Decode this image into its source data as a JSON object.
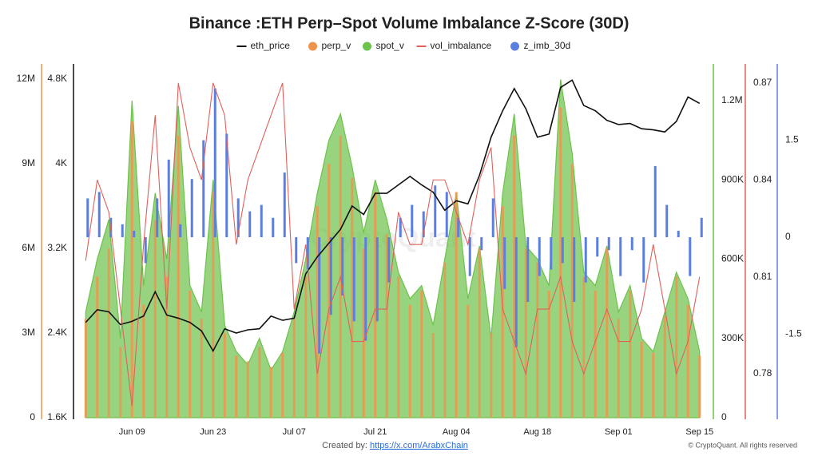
{
  "chart_data": {
    "type": "combo",
    "title": "Binance :ETH Perp–Spot Volume Imbalance Z-Score (30D)",
    "watermark": "CryptoQuant",
    "footer": {
      "created_by": "Created by:",
      "link": "https://x.com/ArabxChain",
      "copyright": "© CryptoQuant. All rights reserved"
    },
    "categories": [
      null,
      null,
      null,
      null,
      "Jun 09",
      null,
      null,
      null,
      null,
      null,
      null,
      "Jun 23",
      null,
      null,
      null,
      null,
      null,
      null,
      "Jul 07",
      null,
      null,
      null,
      null,
      null,
      null,
      "Jul 21",
      null,
      null,
      null,
      null,
      null,
      null,
      "Aug 04",
      null,
      null,
      null,
      null,
      null,
      null,
      "Aug 18",
      null,
      null,
      null,
      null,
      null,
      null,
      "Sep 01",
      null,
      null,
      null,
      null,
      null,
      null,
      "Sep 15"
    ],
    "axes": {
      "perp": {
        "ylim": [
          0,
          12540000
        ],
        "yticks": [
          0,
          {
            "value": 3000000,
            "label": "3M"
          },
          {
            "value": 6000000,
            "label": "6M"
          },
          {
            "value": 9000000,
            "label": "9M"
          },
          {
            "value": 12000000,
            "label": "12M"
          }
        ],
        "color": "#f0944d",
        "side": "left",
        "order": 0
      },
      "eth": {
        "ylim": [
          1600,
          4943
        ],
        "yticks": [
          {
            "value": 1600,
            "label": "1.6K"
          },
          {
            "value": 2400,
            "label": "2.4K"
          },
          {
            "value": 3200,
            "label": "3.2K"
          },
          {
            "value": 4000,
            "label": "4K"
          },
          {
            "value": 4800,
            "label": "4.8K"
          }
        ],
        "color": "#111111",
        "side": "left",
        "order": 1
      },
      "spot": {
        "ylim": [
          0,
          1339000
        ],
        "yticks": [
          0,
          {
            "value": 300000,
            "label": "300K"
          },
          {
            "value": 600000,
            "label": "600K"
          },
          {
            "value": 900000,
            "label": "900K"
          },
          {
            "value": 1200000,
            "label": "1.2M"
          }
        ],
        "color": "#6cc24a",
        "side": "right",
        "order": 0
      },
      "vol": {
        "ylim": [
          0.7664,
          0.8759
        ],
        "yticks": [
          0.78,
          0.81,
          0.84,
          0.87
        ],
        "color": "#e0605a",
        "side": "right",
        "order": 1
      },
      "z": {
        "ylim": [
          -2.79,
          2.68
        ],
        "yticks": [
          -1.5,
          0,
          1.5
        ],
        "color": "#5b7fe0",
        "side": "right",
        "order": 2
      }
    },
    "series": [
      {
        "name": "eth_price",
        "type": "line",
        "axis": "eth",
        "color": "#111111",
        "values": [
          2500,
          2620,
          2600,
          2480,
          2510,
          2560,
          2790,
          2570,
          2540,
          2500,
          2420,
          2230,
          2440,
          2400,
          2430,
          2440,
          2560,
          2520,
          2540,
          2960,
          3120,
          3250,
          3380,
          3600,
          3520,
          3720,
          3720,
          3800,
          3880,
          3800,
          3730,
          3560,
          3650,
          3620,
          3890,
          4250,
          4500,
          4710,
          4520,
          4250,
          4280,
          4720,
          4790,
          4550,
          4500,
          4410,
          4370,
          4380,
          4330,
          4320,
          4300,
          4400,
          4630,
          4570
        ]
      },
      {
        "name": "perp_v",
        "type": "bar",
        "axis": "perp",
        "color": "#f0944d",
        "values": [
          3500000,
          5000000,
          6000000,
          2500000,
          10500000,
          4000000,
          7000000,
          5000000,
          10000000,
          4500000,
          3500000,
          8000000,
          3000000,
          2200000,
          2000000,
          2500000,
          1800000,
          2300000,
          3500000,
          5000000,
          7500000,
          9000000,
          10000000,
          8500000,
          6000000,
          8000000,
          6500000,
          5000000,
          4000000,
          4500000,
          3000000,
          5500000,
          8000000,
          4000000,
          6000000,
          3000000,
          7500000,
          10000000,
          6000000,
          5500000,
          4500000,
          11000000,
          9000000,
          5000000,
          4500000,
          6000000,
          3500000,
          4500000,
          2700000,
          2300000,
          3600000,
          5000000,
          4000000,
          2200000
        ]
      },
      {
        "name": "spot_v",
        "type": "area",
        "axis": "spot",
        "color": "#6cc24a",
        "values": [
          400000,
          600000,
          750000,
          300000,
          1200000,
          500000,
          850000,
          600000,
          1180000,
          500000,
          400000,
          900000,
          350000,
          250000,
          200000,
          300000,
          180000,
          250000,
          400000,
          600000,
          850000,
          1050000,
          1150000,
          950000,
          700000,
          900000,
          750000,
          550000,
          450000,
          500000,
          350000,
          600000,
          850000,
          450000,
          650000,
          300000,
          850000,
          1150000,
          650000,
          600000,
          500000,
          1280000,
          1000000,
          550000,
          500000,
          650000,
          400000,
          500000,
          300000,
          250000,
          400000,
          550000,
          450000,
          250000
        ]
      },
      {
        "name": "vol_imbalance",
        "type": "line",
        "axis": "vol",
        "color": "#e0605a",
        "values": [
          0.815,
          0.84,
          0.83,
          0.8,
          0.77,
          0.82,
          0.86,
          0.8,
          0.87,
          0.85,
          0.84,
          0.87,
          0.86,
          0.82,
          0.84,
          0.85,
          0.86,
          0.87,
          0.8,
          0.82,
          0.78,
          0.8,
          0.81,
          0.79,
          0.79,
          0.8,
          0.8,
          0.83,
          0.82,
          0.82,
          0.84,
          0.84,
          0.83,
          0.82,
          0.84,
          0.85,
          0.8,
          0.79,
          0.78,
          0.8,
          0.8,
          0.81,
          0.79,
          0.78,
          0.79,
          0.8,
          0.79,
          0.79,
          0.8,
          0.82,
          0.8,
          0.78,
          0.79,
          0.81
        ]
      },
      {
        "name": "z_imb_30d",
        "type": "zbar",
        "axis": "z",
        "color": "#5b7fe0",
        "values": [
          0.6,
          0.7,
          0.3,
          0.2,
          0.1,
          -0.4,
          0.6,
          1.2,
          0.2,
          0.9,
          1.5,
          2.3,
          1.6,
          0.6,
          0.4,
          0.5,
          0.3,
          1.0,
          -0.4,
          -0.5,
          -1.8,
          -1.2,
          -0.9,
          -1.3,
          -1.6,
          -1.3,
          -0.7,
          0.3,
          0.5,
          0.4,
          0.8,
          0.7,
          0.3,
          -0.6,
          -0.2,
          0.6,
          -0.8,
          -1.7,
          -1.0,
          -0.6,
          -0.5,
          -0.4,
          -1.0,
          -0.7,
          -0.3,
          -0.2,
          -0.6,
          -0.2,
          -0.7,
          1.1,
          0.5,
          0.1,
          -0.6,
          0.3
        ]
      }
    ]
  }
}
